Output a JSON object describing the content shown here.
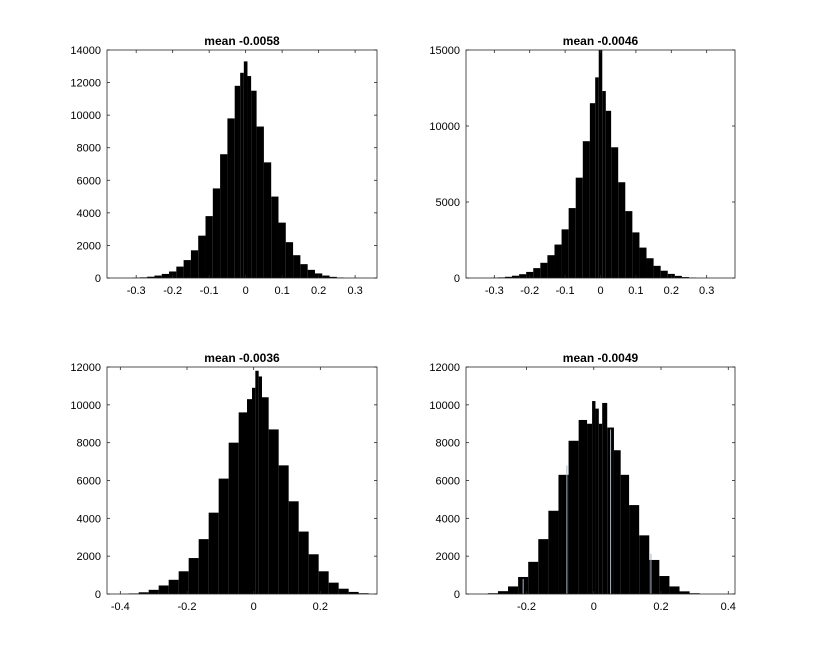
{
  "chart_data": [
    {
      "type": "bar",
      "title": "mean -0.0058",
      "xlabel": "",
      "ylabel": "",
      "xlim": [
        -0.38,
        0.36
      ],
      "ylim": [
        0,
        14000
      ],
      "xticks": [
        -0.3,
        -0.2,
        -0.1,
        0,
        0.1,
        0.2,
        0.3
      ],
      "xticklabels": [
        "-0.3",
        "-0.2",
        "-0.1",
        "0",
        "0.1",
        "0.2",
        "0.3"
      ],
      "yticks": [
        0,
        2000,
        4000,
        6000,
        8000,
        10000,
        12000,
        14000
      ],
      "yticklabels": [
        "0",
        "2000",
        "4000",
        "6000",
        "8000",
        "10000",
        "12000",
        "14000"
      ],
      "grid": false,
      "bar_color": "#000000",
      "x": [
        -0.3,
        -0.28,
        -0.26,
        -0.24,
        -0.22,
        -0.2,
        -0.18,
        -0.16,
        -0.14,
        -0.12,
        -0.1,
        -0.08,
        -0.06,
        -0.04,
        -0.02,
        -0.01,
        0,
        0.01,
        0.02,
        0.04,
        0.06,
        0.08,
        0.1,
        0.12,
        0.14,
        0.16,
        0.18,
        0.2,
        0.22,
        0.24,
        0.26
      ],
      "values": [
        20,
        40,
        80,
        150,
        250,
        400,
        700,
        1100,
        1700,
        2600,
        3800,
        5500,
        7600,
        9800,
        11800,
        12600,
        13300,
        12400,
        11500,
        9300,
        7100,
        5000,
        3400,
        2200,
        1400,
        850,
        500,
        280,
        150,
        70,
        30
      ]
    },
    {
      "type": "bar",
      "title": "mean -0.0046",
      "xlabel": "",
      "ylabel": "",
      "xlim": [
        -0.38,
        0.38
      ],
      "ylim": [
        0,
        15000
      ],
      "xticks": [
        -0.3,
        -0.2,
        -0.1,
        0,
        0.1,
        0.2,
        0.3
      ],
      "xticklabels": [
        "-0.3",
        "-0.2",
        "-0.1",
        "0",
        "0.1",
        "0.2",
        "0.3"
      ],
      "yticks": [
        0,
        5000,
        10000,
        15000
      ],
      "yticklabels": [
        "0",
        "5000",
        "10000",
        "15000"
      ],
      "grid": false,
      "bar_color": "#000000",
      "x": [
        -0.3,
        -0.28,
        -0.26,
        -0.24,
        -0.22,
        -0.2,
        -0.18,
        -0.16,
        -0.14,
        -0.12,
        -0.1,
        -0.08,
        -0.06,
        -0.04,
        -0.02,
        -0.01,
        0,
        0.01,
        0.02,
        0.04,
        0.06,
        0.08,
        0.1,
        0.12,
        0.14,
        0.16,
        0.18,
        0.2,
        0.22,
        0.24,
        0.26
      ],
      "values": [
        20,
        40,
        80,
        150,
        250,
        400,
        650,
        1000,
        1500,
        2200,
        3200,
        4600,
        6600,
        9000,
        11500,
        13200,
        15000,
        12300,
        11000,
        8600,
        6300,
        4400,
        3000,
        2000,
        1300,
        800,
        480,
        270,
        140,
        60,
        25
      ]
    },
    {
      "type": "bar",
      "title": "mean -0.0036",
      "xlabel": "",
      "ylabel": "",
      "xlim": [
        -0.44,
        0.37
      ],
      "ylim": [
        0,
        12000
      ],
      "xticks": [
        -0.4,
        -0.2,
        0,
        0.2
      ],
      "xticklabels": [
        "-0.4",
        "-0.2",
        "0",
        "0.2"
      ],
      "yticks": [
        0,
        2000,
        4000,
        6000,
        8000,
        10000,
        12000
      ],
      "yticklabels": [
        "0",
        "2000",
        "4000",
        "6000",
        "8000",
        "10000",
        "12000"
      ],
      "grid": false,
      "bar_color": "#000000",
      "x": [
        -0.36,
        -0.33,
        -0.3,
        -0.27,
        -0.24,
        -0.21,
        -0.18,
        -0.15,
        -0.12,
        -0.09,
        -0.06,
        -0.03,
        -0.01,
        0,
        0.01,
        0.02,
        0.03,
        0.06,
        0.09,
        0.12,
        0.15,
        0.18,
        0.21,
        0.24,
        0.27,
        0.3,
        0.33
      ],
      "values": [
        30,
        90,
        220,
        450,
        750,
        1200,
        1900,
        2900,
        4300,
        6100,
        8000,
        9600,
        10300,
        10900,
        11800,
        11500,
        10400,
        8700,
        6800,
        4900,
        3300,
        2100,
        1200,
        600,
        280,
        110,
        40
      ]
    },
    {
      "type": "bar",
      "title": "mean -0.0049",
      "xlabel": "",
      "ylabel": "",
      "xlim": [
        -0.38,
        0.42
      ],
      "ylim": [
        0,
        12000
      ],
      "xticks": [
        -0.2,
        0,
        0.2,
        0.4
      ],
      "xticklabels": [
        "-0.2",
        "0",
        "0.2",
        "0.4"
      ],
      "yticks": [
        0,
        2000,
        4000,
        6000,
        8000,
        10000,
        12000
      ],
      "yticklabels": [
        "0",
        "2000",
        "4000",
        "6000",
        "8000",
        "10000",
        "12000"
      ],
      "grid": false,
      "bar_color": "#000000",
      "x": [
        -0.3,
        -0.27,
        -0.24,
        -0.21,
        -0.18,
        -0.15,
        -0.12,
        -0.09,
        -0.06,
        -0.03,
        -0.01,
        0,
        0.01,
        0.02,
        0.03,
        0.05,
        0.07,
        0.09,
        0.12,
        0.15,
        0.18,
        0.21,
        0.24,
        0.27,
        0.3
      ],
      "values": [
        40,
        150,
        400,
        900,
        1700,
        2900,
        4400,
        6300,
        8100,
        9200,
        9000,
        10200,
        9800,
        9000,
        10100,
        8800,
        7600,
        6300,
        4700,
        3100,
        1800,
        950,
        400,
        140,
        40
      ],
      "gap_lines_x": [
        -0.21,
        -0.08,
        0.05,
        0.17
      ],
      "gap_line_color": "#a7b6cc"
    }
  ]
}
